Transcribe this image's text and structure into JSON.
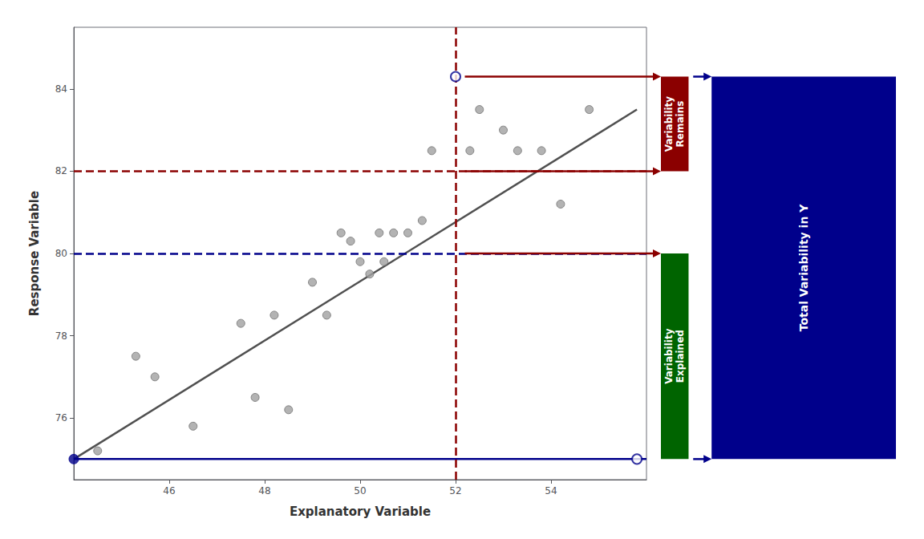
{
  "chart_data": {
    "type": "scatter",
    "x_label": "Explanatory Variable",
    "y_label": "Response Variable",
    "xlim": [
      44.0,
      56.0
    ],
    "ylim": [
      74.5,
      85.5
    ],
    "xticks": [
      46,
      48,
      50,
      52,
      54
    ],
    "yticks": [
      76,
      78,
      80,
      82,
      84
    ],
    "grid": false,
    "series": [
      {
        "type": "scatter",
        "marker": "circle",
        "color": "#a0a0a0",
        "edge_color": "#707070",
        "x": [
          44.5,
          45.3,
          45.7,
          46.5,
          47.5,
          47.8,
          48.2,
          48.5,
          49.0,
          49.3,
          49.6,
          49.8,
          50.0,
          50.2,
          50.4,
          50.5,
          50.7,
          51.0,
          51.3,
          51.5,
          52.3,
          52.5,
          53.0,
          53.3,
          53.8,
          54.2,
          54.8
        ],
        "values": [
          75.2,
          77.5,
          77.0,
          75.8,
          78.3,
          76.5,
          78.5,
          76.2,
          79.3,
          78.5,
          80.5,
          80.3,
          79.8,
          79.5,
          80.5,
          79.8,
          80.5,
          80.5,
          80.8,
          82.5,
          82.5,
          83.5,
          83.0,
          82.5,
          82.5,
          81.2,
          83.5
        ]
      },
      {
        "type": "line",
        "line_style": "solid",
        "color": "#505050",
        "x": [
          44.0,
          55.8
        ],
        "values": [
          75.0,
          83.5
        ]
      },
      {
        "type": "line",
        "line_style": "solid",
        "color": "#00008B",
        "x": [
          44.0,
          56.0
        ],
        "values": [
          75.0,
          75.0
        ]
      },
      {
        "type": "scatter",
        "marker": "circle",
        "color": "#00008B",
        "x": [
          44.0
        ],
        "values": [
          75.0
        ]
      },
      {
        "type": "scatter",
        "marker": "open_circle",
        "color": "#00008B",
        "x": [
          55.8,
          52.0
        ],
        "values": [
          75.0,
          84.3
        ]
      }
    ],
    "reference_lines": [
      {
        "axis": "y",
        "value": 80.0,
        "color": "#00008B",
        "line_style": "dashed"
      },
      {
        "axis": "y",
        "value": 82.0,
        "color": "#8B0000",
        "line_style": "dashed"
      },
      {
        "axis": "x",
        "value": 52.0,
        "color": "#8B0000",
        "line_style": "dashed"
      }
    ],
    "variability_parts": [
      {
        "text": "Variability\nRemains",
        "from": 82.0,
        "to": 84.3,
        "color": "#8B0000"
      },
      {
        "text": "Variability\nExplained",
        "from": 75.0,
        "to": 80.0,
        "color": "#006400"
      }
    ],
    "variability_total": {
      "text": "Total Variability in Y",
      "from": 75.0,
      "to": 84.3,
      "color": "#00008B"
    },
    "arrows": [
      {
        "from_x": 52.0,
        "y": 84.3,
        "color": "#8B0000"
      },
      {
        "from_x": 52.0,
        "y": 82.0,
        "color": "#8B0000"
      },
      {
        "from_x": 52.0,
        "y": 80.0,
        "color": "#8B0000"
      },
      {
        "y": 84.3,
        "color": "#00008B"
      },
      {
        "y": 75.0,
        "color": "#00008B"
      }
    ]
  }
}
